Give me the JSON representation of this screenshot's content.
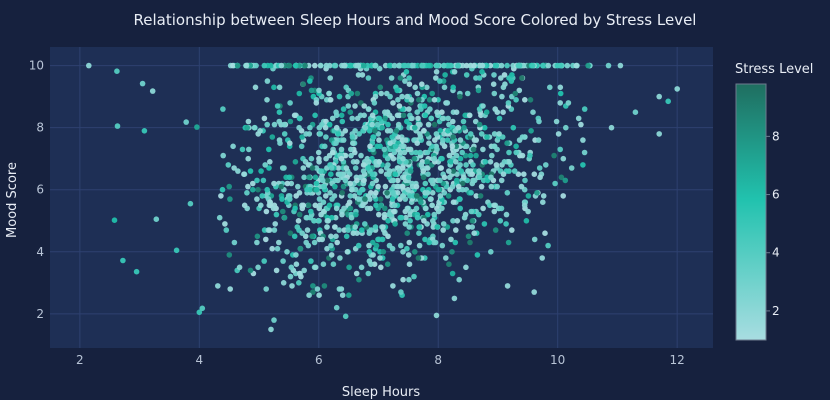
{
  "chart_data": {
    "type": "scatter",
    "title": "Relationship between Sleep Hours and Mood Score Colored by Stress Level",
    "xlabel": "Sleep Hours",
    "ylabel": "Mood Score",
    "xlim": [
      1.5,
      12.6
    ],
    "ylim": [
      0.9,
      10.6
    ],
    "x_ticks": [
      2,
      4,
      6,
      8,
      10,
      12
    ],
    "y_ticks": [
      2,
      4,
      6,
      8,
      10
    ],
    "grid": true,
    "colorbar": {
      "title": "Stress Level",
      "range": [
        1,
        9.8
      ],
      "ticks": [
        2,
        4,
        6,
        8
      ],
      "colorscale": [
        "#a8dde1",
        "#21c2ae",
        "#1f6e60"
      ]
    },
    "cluster": {
      "x_center": 7.2,
      "x_sd": 1.35,
      "y_center": 6.6,
      "y_sd": 1.7,
      "count": 1500,
      "note_cap": 10
    },
    "points": [
      {
        "x": 2.15,
        "y": 10.0,
        "c": 2
      },
      {
        "x": 2.62,
        "y": 9.82,
        "c": 4
      },
      {
        "x": 2.63,
        "y": 8.05,
        "c": 4
      },
      {
        "x": 2.58,
        "y": 5.02,
        "c": 6
      },
      {
        "x": 2.72,
        "y": 3.72,
        "c": 5
      },
      {
        "x": 2.95,
        "y": 3.36,
        "c": 5
      },
      {
        "x": 3.05,
        "y": 9.42,
        "c": 3
      },
      {
        "x": 3.22,
        "y": 9.18,
        "c": 2
      },
      {
        "x": 3.08,
        "y": 7.9,
        "c": 5
      },
      {
        "x": 3.28,
        "y": 5.05,
        "c": 3
      },
      {
        "x": 3.62,
        "y": 4.05,
        "c": 5
      },
      {
        "x": 3.85,
        "y": 5.55,
        "c": 4
      },
      {
        "x": 3.78,
        "y": 8.18,
        "c": 3
      },
      {
        "x": 3.96,
        "y": 8.02,
        "c": 7
      },
      {
        "x": 4.0,
        "y": 2.05,
        "c": 5
      },
      {
        "x": 4.05,
        "y": 2.18,
        "c": 4
      },
      {
        "x": 5.2,
        "y": 1.5,
        "c": 2
      },
      {
        "x": 5.25,
        "y": 1.8,
        "c": 3
      },
      {
        "x": 7.97,
        "y": 1.95,
        "c": 2
      },
      {
        "x": 8.27,
        "y": 2.5,
        "c": 2
      },
      {
        "x": 6.3,
        "y": 2.2,
        "c": 3
      },
      {
        "x": 6.45,
        "y": 1.92,
        "c": 4
      },
      {
        "x": 10.9,
        "y": 8.0,
        "c": 2
      },
      {
        "x": 11.3,
        "y": 8.5,
        "c": 3
      },
      {
        "x": 11.7,
        "y": 9.0,
        "c": 2
      },
      {
        "x": 11.85,
        "y": 8.85,
        "c": 5
      },
      {
        "x": 11.7,
        "y": 7.8,
        "c": 2
      },
      {
        "x": 12.0,
        "y": 9.25,
        "c": 2
      },
      {
        "x": 10.85,
        "y": 10.0,
        "c": 3
      },
      {
        "x": 11.05,
        "y": 10.0,
        "c": 2
      }
    ]
  }
}
